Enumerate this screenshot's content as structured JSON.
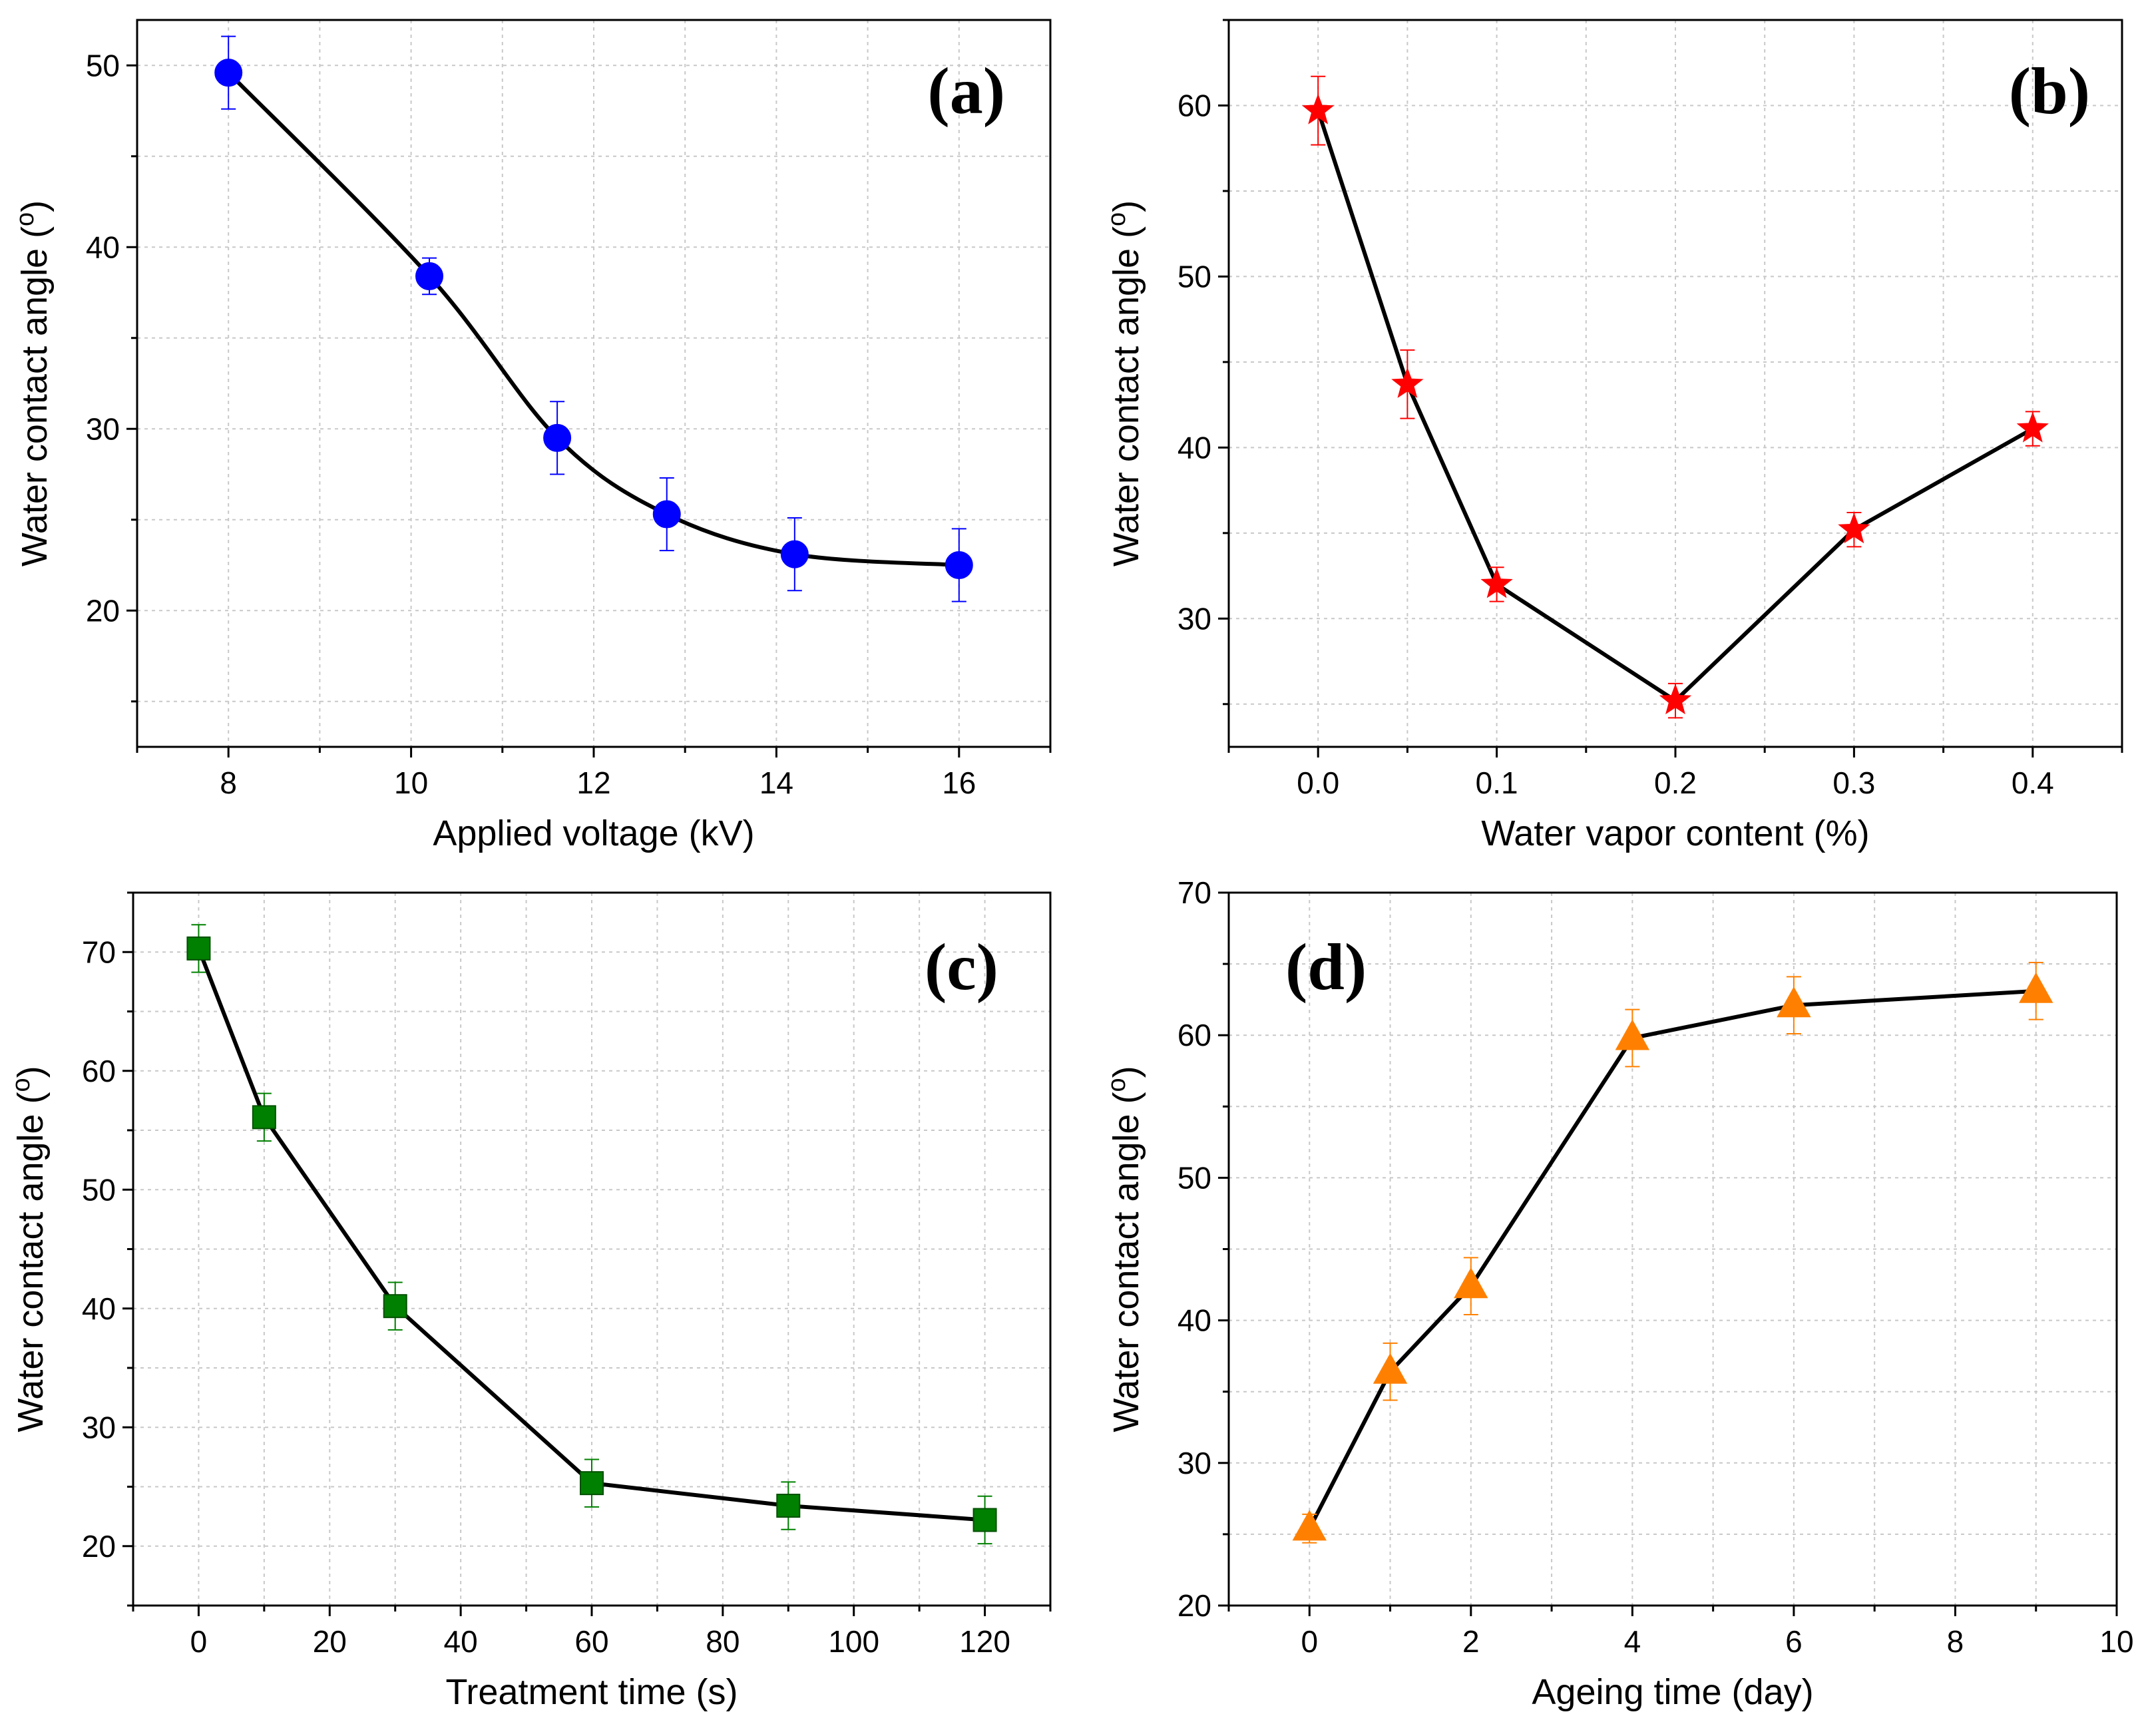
{
  "chart_data": [
    {
      "id": "a",
      "type": "scatter",
      "panel_label": "(a)",
      "xlabel": "Applied voltage (kV)",
      "ylabel": "Water contact angle (<sup>o</sup>)",
      "xlim": [
        7,
        17
      ],
      "ylim": [
        12.5,
        52.5
      ],
      "xticks": [
        8,
        10,
        12,
        14,
        16
      ],
      "yticks": [
        20,
        30,
        40,
        50
      ],
      "grid": true,
      "fit_curve": "smooth",
      "marker": "circle",
      "color": "#0000ff",
      "series": [
        {
          "x": [
            8,
            10.2,
            11.6,
            12.8,
            14.2,
            16
          ],
          "y": [
            49.6,
            38.4,
            29.5,
            25.3,
            23.1,
            22.5
          ],
          "err": [
            2.0,
            1.0,
            2.0,
            2.0,
            2.0,
            2.0
          ]
        }
      ]
    },
    {
      "id": "b",
      "type": "line",
      "panel_label": "(b)",
      "xlabel": "Water vapor content (%)",
      "ylabel": "Water contact angle (<sup>o</sup>)",
      "xlim": [
        -0.05,
        0.45
      ],
      "ylim": [
        22.5,
        65
      ],
      "xticks": [
        0.0,
        0.1,
        0.2,
        0.3,
        0.4
      ],
      "xtick_labels": [
        "0.0",
        "0.1",
        "0.2",
        "0.3",
        "0.4"
      ],
      "yticks": [
        30,
        40,
        50,
        60
      ],
      "grid": true,
      "marker": "star",
      "color": "#ff0000",
      "series": [
        {
          "x": [
            0.0,
            0.05,
            0.1,
            0.2,
            0.3,
            0.4
          ],
          "y": [
            59.7,
            43.7,
            32.0,
            25.2,
            35.2,
            41.1
          ],
          "err": [
            2.0,
            2.0,
            1.0,
            1.0,
            1.0,
            1.0
          ]
        }
      ]
    },
    {
      "id": "c",
      "type": "line",
      "panel_label": "(c)",
      "xlabel": "Treatment time (s)",
      "ylabel": "Water contact angle (<sup>o</sup>)",
      "xlim": [
        -10,
        130
      ],
      "ylim": [
        15,
        75
      ],
      "xticks": [
        0,
        20,
        40,
        60,
        80,
        100,
        120
      ],
      "yticks": [
        20,
        30,
        40,
        50,
        60,
        70
      ],
      "grid": true,
      "marker": "square",
      "color": "#008000",
      "series": [
        {
          "x": [
            0,
            10,
            30,
            60,
            90,
            120
          ],
          "y": [
            70.3,
            56.1,
            40.2,
            25.3,
            23.4,
            22.2
          ],
          "err": [
            2.0,
            2.0,
            2.0,
            2.0,
            2.0,
            2.0
          ]
        }
      ]
    },
    {
      "id": "d",
      "type": "line",
      "panel_label": "(d)",
      "xlabel": "Ageing time (day)",
      "ylabel": "Water contact angle (<sup>o</sup>)",
      "xlim": [
        -1,
        10
      ],
      "ylim": [
        20,
        70
      ],
      "xticks": [
        0,
        2,
        4,
        6,
        8,
        10
      ],
      "yticks": [
        20,
        30,
        40,
        50,
        60,
        70
      ],
      "grid": true,
      "marker": "triangle",
      "color": "#ff8000",
      "series": [
        {
          "x": [
            0,
            1,
            2,
            4,
            6,
            9
          ],
          "y": [
            25.4,
            36.4,
            42.4,
            59.8,
            62.1,
            63.1
          ],
          "err": [
            1.0,
            2.0,
            2.0,
            2.0,
            2.0,
            2.0
          ]
        }
      ]
    }
  ]
}
